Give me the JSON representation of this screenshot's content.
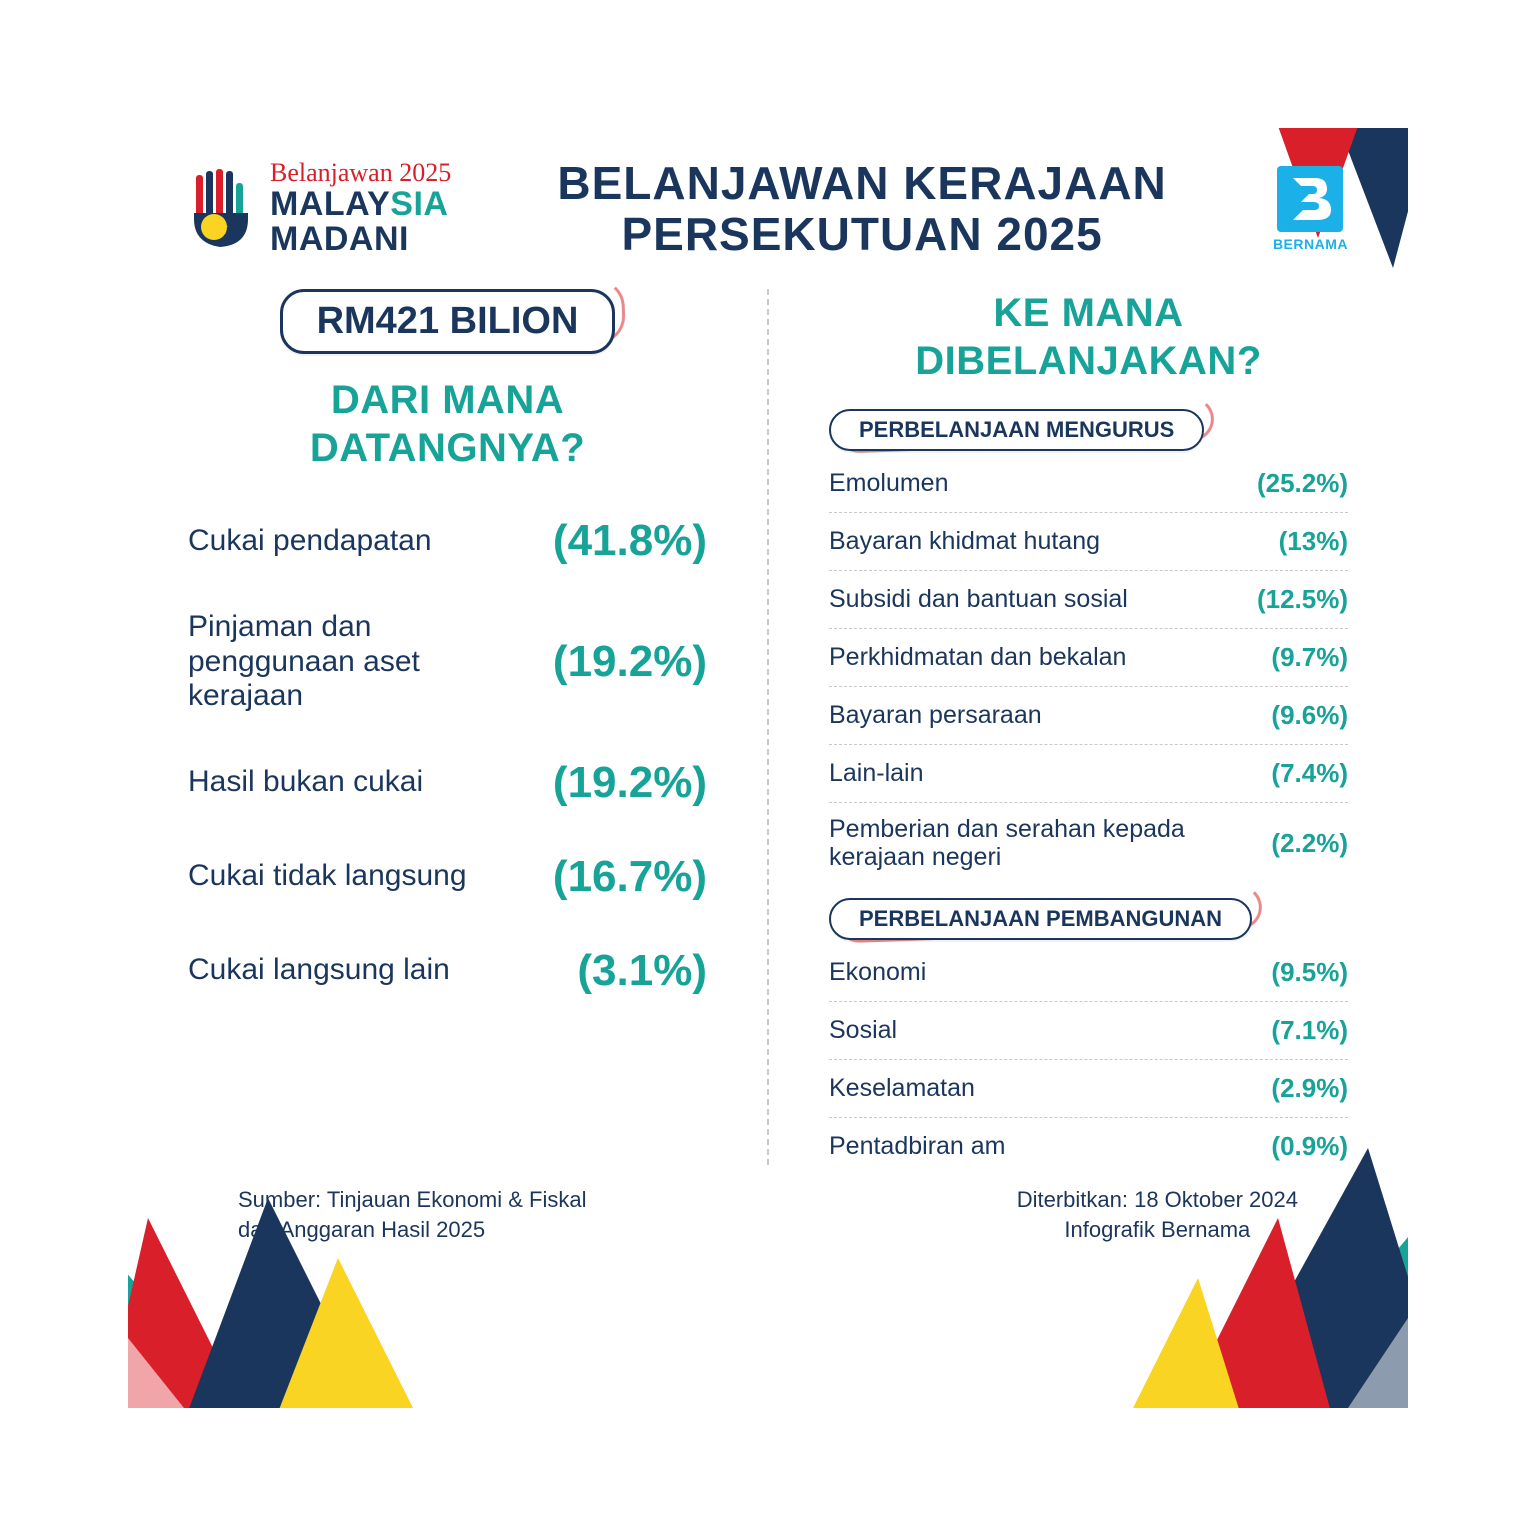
{
  "colors": {
    "navy": "#1b365d",
    "teal": "#17a398",
    "red": "#d91f2a",
    "bernama_blue": "#1cb0e8",
    "yellow": "#f9d423",
    "divider": "#c9c9c9",
    "background": "#ffffff"
  },
  "typography": {
    "main_title_fontsize": 46,
    "sub_heading_fontsize": 40,
    "pill_big_fontsize": 38,
    "pill_small_fontsize": 22,
    "rev_label_fontsize": 30,
    "rev_value_fontsize": 44,
    "exp_fontsize": 25,
    "footer_fontsize": 22
  },
  "header": {
    "logo_script": "Belanjawan 2025",
    "logo_line1a": "MALAY",
    "logo_line1b": "SIA",
    "logo_line2": "MADANI",
    "main_title_line1": "BELANJAWAN KERAJAAN",
    "main_title_line2": "PERSEKUTUAN 2025",
    "bernama_letter": "B",
    "bernama_label": "BERNAMA"
  },
  "left": {
    "total": "RM421 BILION",
    "sub_heading_line1": "DARI MANA",
    "sub_heading_line2": "DATANGNYA?",
    "revenue": [
      {
        "label": "Cukai pendapatan",
        "value": "(41.8%)"
      },
      {
        "label": "Pinjaman dan penggunaan aset kerajaan",
        "value": "(19.2%)"
      },
      {
        "label": "Hasil bukan cukai",
        "value": "(19.2%)"
      },
      {
        "label": "Cukai tidak langsung",
        "value": "(16.7%)"
      },
      {
        "label": "Cukai langsung lain",
        "value": "(3.1%)"
      }
    ]
  },
  "right": {
    "sub_heading_line1": "KE MANA",
    "sub_heading_line2": "DIBELANJAKAN?",
    "sections": [
      {
        "title": "PERBELANJAAN MENGURUS",
        "rows": [
          {
            "label": "Emolumen",
            "value": "(25.2%)"
          },
          {
            "label": "Bayaran khidmat hutang",
            "value": "(13%)"
          },
          {
            "label": "Subsidi dan bantuan sosial",
            "value": "(12.5%)"
          },
          {
            "label": "Perkhidmatan dan bekalan",
            "value": "(9.7%)"
          },
          {
            "label": "Bayaran persaraan",
            "value": "(9.6%)"
          },
          {
            "label": "Lain-lain",
            "value": "(7.4%)"
          },
          {
            "label": "Pemberian dan serahan kepada kerajaan negeri",
            "value": "(2.2%)"
          }
        ]
      },
      {
        "title": "PERBELANJAAN PEMBANGUNAN",
        "rows": [
          {
            "label": "Ekonomi",
            "value": "(9.5%)"
          },
          {
            "label": "Sosial",
            "value": "(7.1%)"
          },
          {
            "label": "Keselamatan",
            "value": "(2.9%)"
          },
          {
            "label": "Pentadbiran am",
            "value": "(0.9%)"
          }
        ]
      }
    ]
  },
  "footer": {
    "left_line1": "Sumber: Tinjauan Ekonomi & Fiskal",
    "left_line2": "dan Anggaran Hasil 2025",
    "right_line1": "Diterbitkan: 18 Oktober 2024",
    "right_line2": "Infografik Bernama"
  }
}
